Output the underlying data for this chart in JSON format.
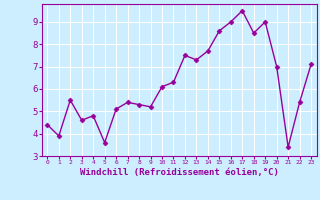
{
  "x": [
    0,
    1,
    2,
    3,
    4,
    5,
    6,
    7,
    8,
    9,
    10,
    11,
    12,
    13,
    14,
    15,
    16,
    17,
    18,
    19,
    20,
    21,
    22,
    23
  ],
  "y": [
    4.4,
    3.9,
    5.5,
    4.6,
    4.8,
    3.6,
    5.1,
    5.4,
    5.3,
    5.2,
    6.1,
    6.3,
    7.5,
    7.3,
    7.7,
    8.6,
    9.0,
    9.5,
    8.5,
    9.0,
    7.0,
    3.4,
    5.4,
    7.1
  ],
  "line_color": "#990099",
  "marker": "D",
  "markersize": 2.5,
  "linewidth": 1.0,
  "xlabel": "Windchill (Refroidissement éolien,°C)",
  "xlabel_fontsize": 6.5,
  "bg_color": "#cceeff",
  "grid_color": "#ffffff",
  "tick_color": "#990099",
  "label_color": "#990099",
  "xlim": [
    -0.5,
    23.5
  ],
  "ylim": [
    3.0,
    9.8
  ],
  "yticks": [
    3,
    4,
    5,
    6,
    7,
    8,
    9
  ],
  "xticks": [
    0,
    1,
    2,
    3,
    4,
    5,
    6,
    7,
    8,
    9,
    10,
    11,
    12,
    13,
    14,
    15,
    16,
    17,
    18,
    19,
    20,
    21,
    22,
    23
  ],
  "spine_color": "#990099"
}
